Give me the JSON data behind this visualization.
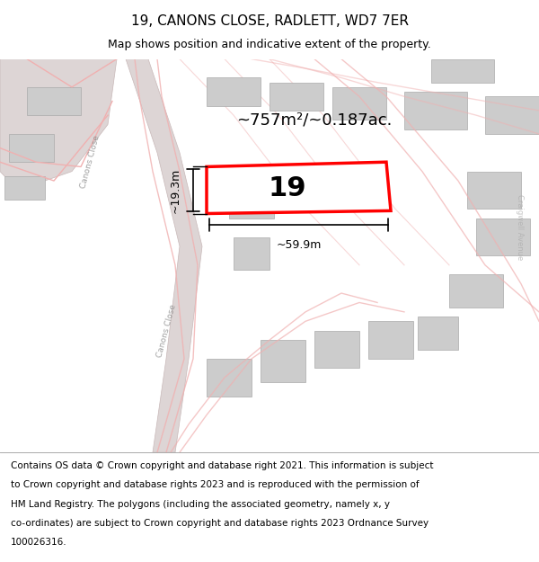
{
  "title": "19, CANONS CLOSE, RADLETT, WD7 7ER",
  "subtitle": "Map shows position and indicative extent of the property.",
  "footer": "Contains OS data © Crown copyright and database right 2021. This information is subject to Crown copyright and database rights 2023 and is reproduced with the permission of HM Land Registry. The polygons (including the associated geometry, namely x, y co-ordinates) are subject to Crown copyright and database rights 2023 Ordnance Survey 100026316.",
  "area_label": "~757m²/~0.187ac.",
  "number_label": "19",
  "width_label": "~59.9m",
  "height_label": "~19.3m",
  "bg_color": "#ffffff",
  "map_bg": "#f5f0f0",
  "road_color": "#dddddd",
  "building_color": "#cccccc",
  "road_line_color": "#f0b0b0",
  "highlight_color": "#ff0000",
  "text_color": "#000000",
  "title_fontsize": 11,
  "subtitle_fontsize": 9,
  "footer_fontsize": 7.5
}
